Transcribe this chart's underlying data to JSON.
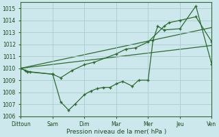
{
  "title": "",
  "xlabel": "Pression niveau de la mer( hPa )",
  "background_color": "#cce8ed",
  "grid_color": "#aacccc",
  "line_color": "#2d6a2d",
  "xlim": [
    0,
    6
  ],
  "ylim": [
    1006,
    1015.5
  ],
  "yticks": [
    1006,
    1007,
    1008,
    1009,
    1010,
    1011,
    1012,
    1013,
    1014,
    1015
  ],
  "xtick_labels": [
    "Dittoun",
    "Sam",
    "Dim",
    "Mar",
    "Mer",
    "Jeu",
    "Ven"
  ],
  "xtick_positions": [
    0,
    1,
    2,
    3,
    4,
    5,
    6
  ],
  "series1_x": [
    0.0,
    0.2,
    1.0,
    1.25,
    1.5,
    1.7,
    2.0,
    2.2,
    2.4,
    2.6,
    2.8,
    3.0,
    3.2,
    3.5,
    3.7,
    4.0,
    4.15,
    4.3,
    4.5,
    5.0,
    5.5,
    6.0
  ],
  "series1_y": [
    1010.0,
    1009.7,
    1009.5,
    1007.2,
    1006.5,
    1007.0,
    1007.8,
    1008.1,
    1008.3,
    1008.4,
    1008.4,
    1008.7,
    1008.9,
    1008.5,
    1009.0,
    1009.0,
    1012.3,
    1013.5,
    1013.2,
    1013.3,
    1015.2,
    1010.3
  ],
  "series2_x": [
    0.0,
    0.15,
    0.3,
    1.0,
    1.25,
    1.6,
    2.0,
    2.3,
    3.0,
    3.3,
    3.6,
    4.0,
    4.5,
    4.65,
    5.0,
    5.5,
    6.0
  ],
  "series2_y": [
    1010.0,
    1009.8,
    1009.7,
    1009.5,
    1009.2,
    1009.8,
    1010.3,
    1010.5,
    1011.2,
    1011.6,
    1011.7,
    1012.2,
    1013.5,
    1013.8,
    1014.0,
    1014.3,
    1012.2
  ],
  "series3_x": [
    0.0,
    6.0
  ],
  "series3_y": [
    1010.0,
    1013.4
  ],
  "series4_x": [
    0.0,
    6.0
  ],
  "series4_y": [
    1010.0,
    1011.9
  ]
}
